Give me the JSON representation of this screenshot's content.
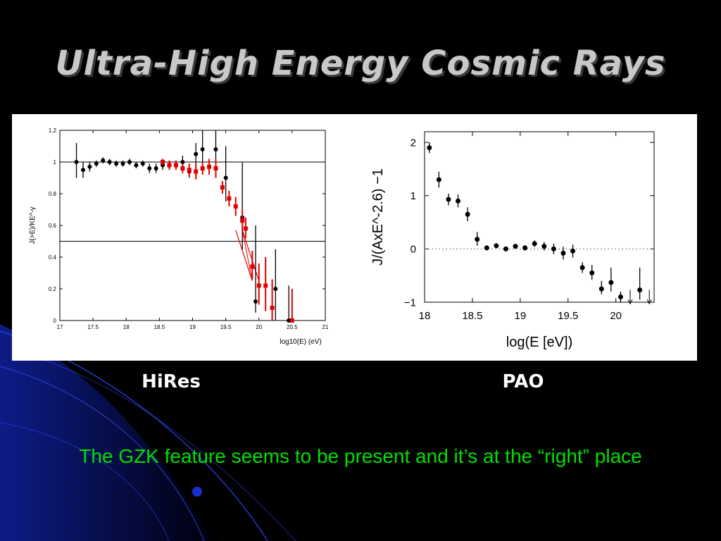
{
  "slide": {
    "title": "Ultra-High Energy Cosmic Rays",
    "caption_left": "HiRes",
    "caption_right": "PAO",
    "conclusion": "The GZK feature seems to be present and it’s at the “right” place"
  },
  "colors": {
    "background": "#000000",
    "title": "#c8c8c8",
    "conclusion": "#00e000",
    "black_points": "#000000",
    "red_points": "#e00000",
    "decoration": "#1a2fd0"
  },
  "chart_data": [
    {
      "type": "scatter",
      "name": "HiRes",
      "xlabel": "log10(E) (eV)",
      "ylabel": "J(>E)/KE^-γ",
      "xlim": [
        17,
        21
      ],
      "ylim": [
        0,
        1.2
      ],
      "xticks": [
        "17",
        "17.5",
        "18",
        "18.5",
        "19",
        "19.5",
        "20",
        "20.5",
        "21"
      ],
      "yticks": [
        "0",
        "0.2",
        "0.4",
        "0.6",
        "0.8",
        "1",
        "1.2"
      ],
      "reference_lines": [
        1.0,
        0.5
      ],
      "series": [
        {
          "marker": "circle",
          "color": "#000000",
          "points": [
            {
              "x": 17.25,
              "y": 1.0,
              "lo": 0.9,
              "hi": 1.12
            },
            {
              "x": 17.35,
              "y": 0.95,
              "lo": 0.9,
              "hi": 1.0
            },
            {
              "x": 17.45,
              "y": 0.97,
              "lo": 0.94,
              "hi": 1.0
            },
            {
              "x": 17.55,
              "y": 0.99,
              "lo": 0.97,
              "hi": 1.01
            },
            {
              "x": 17.65,
              "y": 1.01,
              "lo": 0.99,
              "hi": 1.03
            },
            {
              "x": 17.75,
              "y": 1.0,
              "lo": 0.98,
              "hi": 1.02
            },
            {
              "x": 17.85,
              "y": 0.99,
              "lo": 0.97,
              "hi": 1.01
            },
            {
              "x": 17.95,
              "y": 0.99,
              "lo": 0.97,
              "hi": 1.01
            },
            {
              "x": 18.05,
              "y": 1.0,
              "lo": 0.98,
              "hi": 1.02
            },
            {
              "x": 18.15,
              "y": 0.98,
              "lo": 0.96,
              "hi": 1.0
            },
            {
              "x": 18.25,
              "y": 0.99,
              "lo": 0.97,
              "hi": 1.01
            },
            {
              "x": 18.35,
              "y": 0.96,
              "lo": 0.93,
              "hi": 0.99
            },
            {
              "x": 18.45,
              "y": 0.96,
              "lo": 0.93,
              "hi": 0.99
            },
            {
              "x": 18.55,
              "y": 0.98,
              "lo": 0.95,
              "hi": 1.01
            },
            {
              "x": 18.85,
              "y": 1.0,
              "lo": 0.96,
              "hi": 1.04
            },
            {
              "x": 18.95,
              "y": 0.94,
              "lo": 0.9,
              "hi": 0.98
            },
            {
              "x": 19.05,
              "y": 1.05,
              "lo": 0.98,
              "hi": 1.12
            },
            {
              "x": 19.15,
              "y": 1.08,
              "lo": 0.96,
              "hi": 1.2
            },
            {
              "x": 19.35,
              "y": 1.08,
              "lo": 0.9,
              "hi": 1.2
            },
            {
              "x": 19.5,
              "y": 0.9,
              "lo": 0.75,
              "hi": 1.1
            },
            {
              "x": 19.75,
              "y": 0.65,
              "lo": 0.45,
              "hi": 1.0
            },
            {
              "x": 19.95,
              "y": 0.12,
              "lo": 0.05,
              "hi": 0.6
            },
            {
              "x": 20.25,
              "y": 0.2,
              "lo": 0.0,
              "hi": 0.45
            },
            {
              "x": 20.45,
              "y": 0.0,
              "lo": 0.0,
              "hi": 0.22
            }
          ]
        },
        {
          "marker": "square",
          "color": "#e00000",
          "points": [
            {
              "x": 18.55,
              "y": 1.0,
              "lo": 0.98,
              "hi": 1.02
            },
            {
              "x": 18.65,
              "y": 0.98,
              "lo": 0.95,
              "hi": 1.01
            },
            {
              "x": 18.75,
              "y": 0.98,
              "lo": 0.95,
              "hi": 1.01
            },
            {
              "x": 18.85,
              "y": 0.96,
              "lo": 0.93,
              "hi": 0.99
            },
            {
              "x": 18.95,
              "y": 0.95,
              "lo": 0.91,
              "hi": 0.99
            },
            {
              "x": 19.05,
              "y": 0.94,
              "lo": 0.89,
              "hi": 0.99
            },
            {
              "x": 19.15,
              "y": 0.96,
              "lo": 0.92,
              "hi": 1.0
            },
            {
              "x": 19.25,
              "y": 0.97,
              "lo": 0.92,
              "hi": 1.02
            },
            {
              "x": 19.35,
              "y": 0.96,
              "lo": 0.9,
              "hi": 1.02
            },
            {
              "x": 19.45,
              "y": 0.84,
              "lo": 0.8,
              "hi": 0.88
            },
            {
              "x": 19.55,
              "y": 0.77,
              "lo": 0.72,
              "hi": 0.82
            },
            {
              "x": 19.65,
              "y": 0.72,
              "lo": 0.66,
              "hi": 0.78
            },
            {
              "x": 19.75,
              "y": 0.63,
              "lo": 0.57,
              "hi": 0.7
            },
            {
              "x": 19.8,
              "y": 0.58,
              "lo": 0.52,
              "hi": 0.65
            },
            {
              "x": 19.9,
              "y": 0.34,
              "lo": 0.26,
              "hi": 0.44
            },
            {
              "x": 20.0,
              "y": 0.22,
              "lo": 0.1,
              "hi": 0.36
            },
            {
              "x": 20.1,
              "y": 0.22,
              "lo": 0.06,
              "hi": 0.4
            },
            {
              "x": 20.2,
              "y": 0.08,
              "lo": 0.0,
              "hi": 0.26
            },
            {
              "x": 20.5,
              "y": 0.0,
              "lo": 0.0,
              "hi": 0.2
            }
          ]
        }
      ],
      "band_upper": [
        [
          19.75,
          0.57
        ],
        [
          20.0,
          0.25
        ]
      ],
      "band_lower": [
        [
          19.65,
          0.57
        ],
        [
          19.9,
          0.25
        ]
      ]
    },
    {
      "type": "scatter",
      "name": "PAO",
      "xlabel": "log(E [eV])",
      "ylabel": "J/(AxE^-2.6) −1",
      "xlim": [
        18,
        20.4
      ],
      "ylim": [
        -1,
        2.2
      ],
      "xticks": [
        "18",
        "18.5",
        "19",
        "19.5",
        "20"
      ],
      "yticks": [
        "−1",
        "0",
        "1",
        "2"
      ],
      "reference_lines": [
        0
      ],
      "series": [
        {
          "marker": "circle",
          "color": "#000000",
          "points": [
            {
              "x": 18.05,
              "y": 1.9,
              "lo": 1.8,
              "hi": 2.0
            },
            {
              "x": 18.15,
              "y": 1.3,
              "lo": 1.15,
              "hi": 1.45
            },
            {
              "x": 18.25,
              "y": 0.93,
              "lo": 0.82,
              "hi": 1.04
            },
            {
              "x": 18.35,
              "y": 0.9,
              "lo": 0.78,
              "hi": 1.02
            },
            {
              "x": 18.45,
              "y": 0.65,
              "lo": 0.52,
              "hi": 0.78
            },
            {
              "x": 18.55,
              "y": 0.18,
              "lo": 0.06,
              "hi": 0.32
            },
            {
              "x": 18.65,
              "y": 0.02,
              "lo": -0.02,
              "hi": 0.06
            },
            {
              "x": 18.75,
              "y": 0.06,
              "lo": 0.02,
              "hi": 0.1
            },
            {
              "x": 18.85,
              "y": 0.0,
              "lo": -0.04,
              "hi": 0.04
            },
            {
              "x": 18.95,
              "y": 0.05,
              "lo": 0.01,
              "hi": 0.09
            },
            {
              "x": 19.05,
              "y": 0.02,
              "lo": -0.03,
              "hi": 0.07
            },
            {
              "x": 19.15,
              "y": 0.1,
              "lo": 0.04,
              "hi": 0.16
            },
            {
              "x": 19.25,
              "y": 0.05,
              "lo": -0.03,
              "hi": 0.13
            },
            {
              "x": 19.35,
              "y": 0.0,
              "lo": -0.1,
              "hi": 0.1
            },
            {
              "x": 19.45,
              "y": -0.08,
              "lo": -0.2,
              "hi": 0.04
            },
            {
              "x": 19.55,
              "y": -0.04,
              "lo": -0.16,
              "hi": 0.08
            },
            {
              "x": 19.65,
              "y": -0.35,
              "lo": -0.45,
              "hi": -0.25
            },
            {
              "x": 19.75,
              "y": -0.45,
              "lo": -0.58,
              "hi": -0.3
            },
            {
              "x": 19.85,
              "y": -0.75,
              "lo": -0.85,
              "hi": -0.6
            },
            {
              "x": 19.95,
              "y": -0.63,
              "lo": -0.8,
              "hi": -0.35
            },
            {
              "x": 20.05,
              "y": -0.9,
              "lo": -1.0,
              "hi": -0.8
            },
            {
              "x": 20.25,
              "y": -0.77,
              "lo": -0.95,
              "hi": -0.35
            }
          ]
        }
      ],
      "upper_limits": [
        {
          "x": 20.15,
          "y": -0.95
        },
        {
          "x": 20.35,
          "y": -0.95
        }
      ]
    }
  ]
}
